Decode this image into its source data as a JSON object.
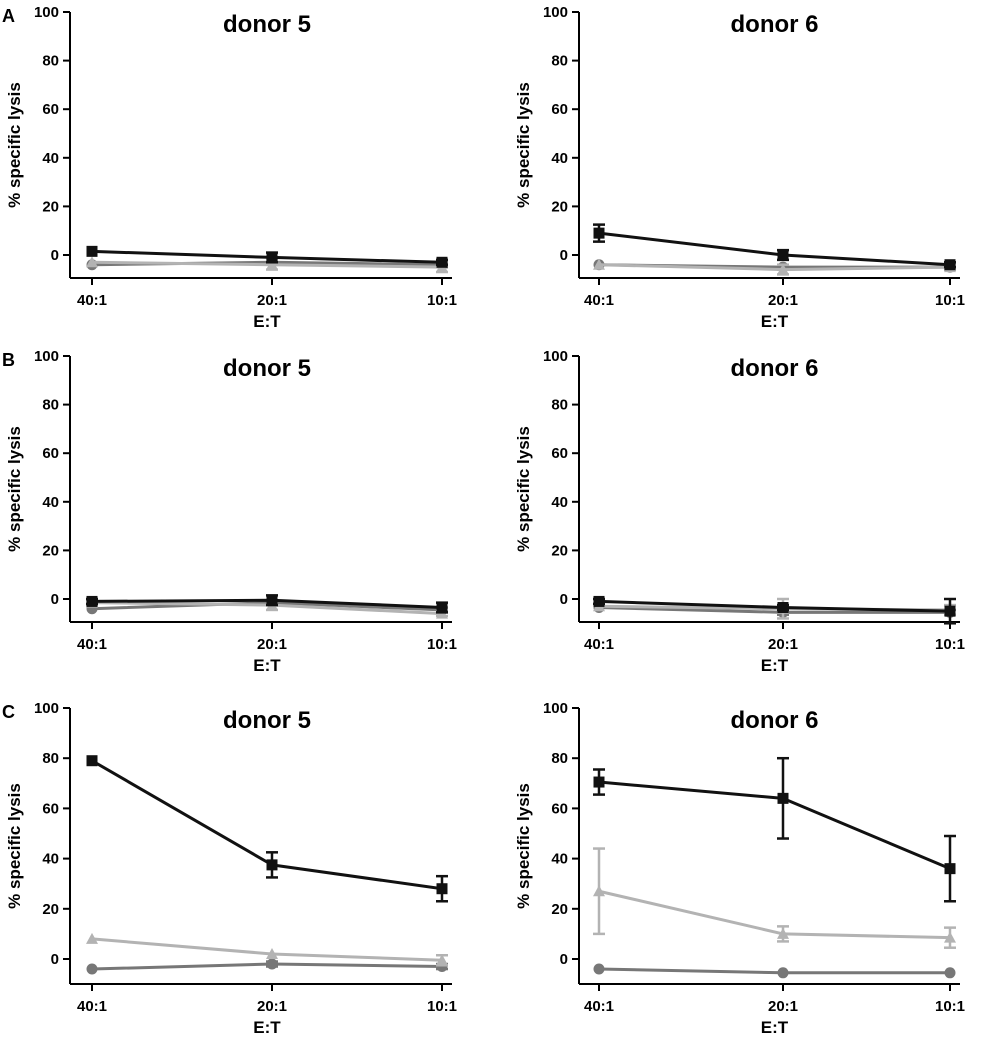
{
  "panel_letters": [
    "A",
    "B",
    "C"
  ],
  "series_styles": [
    {
      "name": "series-1",
      "color": "#111111",
      "marker": "square"
    },
    {
      "name": "series-2",
      "color": "#b3b3b3",
      "marker": "triangle"
    },
    {
      "name": "series-3",
      "color": "#777777",
      "marker": "circle"
    }
  ],
  "chart_data": [
    {
      "panel": "A",
      "type": "line",
      "title": "donor 5",
      "xlabel": "E:T",
      "ylabel": "% specific lysis",
      "categories": [
        "40:1",
        "20:1",
        "10:1"
      ],
      "ylim": [
        -10,
        100
      ],
      "yticks": [
        0,
        20,
        40,
        60,
        80,
        100
      ],
      "series": [
        {
          "name": "series-1",
          "values": [
            1.5,
            -1,
            -3
          ],
          "errors": [
            0,
            2,
            1
          ]
        },
        {
          "name": "series-2",
          "values": [
            -3,
            -4,
            -5
          ],
          "errors": [
            0,
            2,
            2
          ]
        },
        {
          "name": "series-3",
          "values": [
            -4,
            -3,
            -4
          ],
          "errors": [
            0,
            1,
            1
          ]
        }
      ]
    },
    {
      "panel": "A",
      "type": "line",
      "title": "donor 6",
      "xlabel": "E:T",
      "ylabel": "% specific lysis",
      "categories": [
        "40:1",
        "20:1",
        "10:1"
      ],
      "ylim": [
        -10,
        100
      ],
      "yticks": [
        0,
        20,
        40,
        60,
        80,
        100
      ],
      "series": [
        {
          "name": "series-1",
          "values": [
            9,
            0,
            -4
          ],
          "errors": [
            3.5,
            2,
            1
          ]
        },
        {
          "name": "series-2",
          "values": [
            -4,
            -6,
            -5
          ],
          "errors": [
            0,
            2,
            1
          ]
        },
        {
          "name": "series-3",
          "values": [
            -4,
            -5,
            -5
          ],
          "errors": [
            0,
            1,
            1
          ]
        }
      ]
    },
    {
      "panel": "B",
      "type": "line",
      "title": "donor 5",
      "xlabel": "E:T",
      "ylabel": "% specific lysis",
      "categories": [
        "40:1",
        "20:1",
        "10:1"
      ],
      "ylim": [
        -10,
        100
      ],
      "yticks": [
        0,
        20,
        40,
        60,
        80,
        100
      ],
      "series": [
        {
          "name": "series-1",
          "values": [
            -1,
            -0.5,
            -3.5
          ],
          "errors": [
            1,
            2,
            2
          ]
        },
        {
          "name": "series-2",
          "values": [
            -1.5,
            -2.5,
            -6
          ],
          "errors": [
            1,
            2,
            1
          ]
        },
        {
          "name": "series-3",
          "values": [
            -4,
            -1.5,
            -4.5
          ],
          "errors": [
            0,
            1,
            1
          ]
        }
      ]
    },
    {
      "panel": "B",
      "type": "line",
      "title": "donor 6",
      "xlabel": "E:T",
      "ylabel": "% specific lysis",
      "categories": [
        "40:1",
        "20:1",
        "10:1"
      ],
      "ylim": [
        -10,
        100
      ],
      "yticks": [
        0,
        20,
        40,
        60,
        80,
        100
      ],
      "series": [
        {
          "name": "series-1",
          "values": [
            -1,
            -3.5,
            -5
          ],
          "errors": [
            1,
            1,
            5
          ]
        },
        {
          "name": "series-2",
          "values": [
            -3,
            -4,
            -4.5
          ],
          "errors": [
            0,
            4,
            2
          ]
        },
        {
          "name": "series-3",
          "values": [
            -3.5,
            -5.5,
            -5.5
          ],
          "errors": [
            0,
            1,
            1
          ]
        }
      ]
    },
    {
      "panel": "C",
      "type": "line",
      "title": "donor 5",
      "xlabel": "E:T",
      "ylabel": "% specific lysis",
      "categories": [
        "40:1",
        "20:1",
        "10:1"
      ],
      "ylim": [
        -10,
        100
      ],
      "yticks": [
        0,
        20,
        40,
        60,
        80,
        100
      ],
      "series": [
        {
          "name": "series-1",
          "values": [
            79,
            37.5,
            28
          ],
          "errors": [
            0,
            5,
            5
          ]
        },
        {
          "name": "series-2",
          "values": [
            8,
            2,
            -0.5
          ],
          "errors": [
            0,
            0,
            2
          ]
        },
        {
          "name": "series-3",
          "values": [
            -4,
            -2,
            -3
          ],
          "errors": [
            0,
            1,
            1
          ]
        }
      ]
    },
    {
      "panel": "C",
      "type": "line",
      "title": "donor 6",
      "xlabel": "E:T",
      "ylabel": "% specific lysis",
      "categories": [
        "40:1",
        "20:1",
        "10:1"
      ],
      "ylim": [
        -10,
        100
      ],
      "yticks": [
        0,
        20,
        40,
        60,
        80,
        100
      ],
      "series": [
        {
          "name": "series-1",
          "values": [
            70.5,
            64,
            36
          ],
          "errors": [
            5,
            16,
            13
          ]
        },
        {
          "name": "series-2",
          "values": [
            27,
            10,
            8.5
          ],
          "errors": [
            17,
            3,
            4
          ]
        },
        {
          "name": "series-3",
          "values": [
            -4,
            -5.5,
            -5.5
          ],
          "errors": [
            0,
            0,
            0
          ]
        }
      ]
    }
  ]
}
